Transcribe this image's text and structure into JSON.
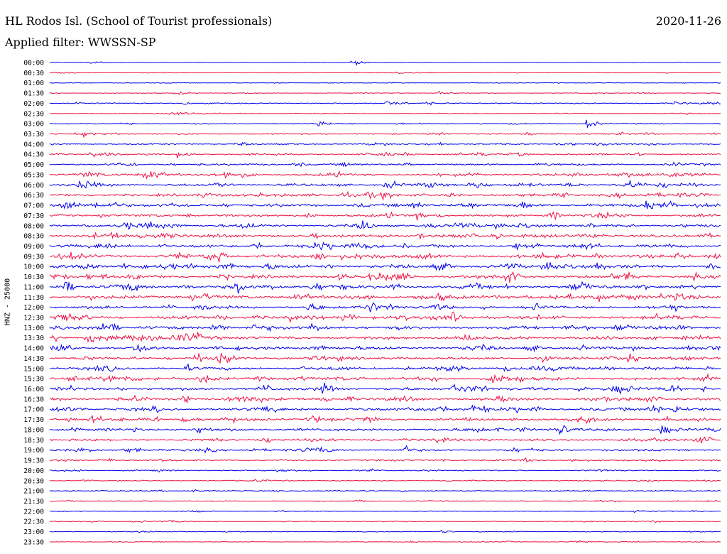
{
  "header": {
    "station": "HL Rodos Isl. (School of Tourist professionals)",
    "date": "2020-11-26",
    "filter": "Applied filter: WWSSN-SP"
  },
  "chart_data": {
    "type": "line",
    "title": "HL Rodos Isl. (School of Tourist professionals)",
    "ylabel": "HNZ - 25000",
    "xlabel": "",
    "grid": false,
    "legend": "none",
    "series_colors": [
      "#0000ee",
      "#ee1144"
    ],
    "rows": [
      {
        "time": "00:00",
        "activity": 0.15
      },
      {
        "time": "00:30",
        "activity": 0.15
      },
      {
        "time": "01:00",
        "activity": 0.12
      },
      {
        "time": "01:30",
        "activity": 0.18
      },
      {
        "time": "02:00",
        "activity": 0.3
      },
      {
        "time": "02:30",
        "activity": 0.18
      },
      {
        "time": "03:00",
        "activity": 0.3
      },
      {
        "time": "03:30",
        "activity": 0.35
      },
      {
        "time": "04:00",
        "activity": 0.4
      },
      {
        "time": "04:30",
        "activity": 0.5
      },
      {
        "time": "05:00",
        "activity": 0.55
      },
      {
        "time": "05:30",
        "activity": 0.75
      },
      {
        "time": "06:00",
        "activity": 0.8
      },
      {
        "time": "06:30",
        "activity": 0.8
      },
      {
        "time": "07:00",
        "activity": 0.9
      },
      {
        "time": "07:30",
        "activity": 0.8
      },
      {
        "time": "08:00",
        "activity": 0.85
      },
      {
        "time": "08:30",
        "activity": 0.9
      },
      {
        "time": "09:00",
        "activity": 0.95
      },
      {
        "time": "09:30",
        "activity": 1.0
      },
      {
        "time": "10:00",
        "activity": 1.0
      },
      {
        "time": "10:30",
        "activity": 1.0
      },
      {
        "time": "11:00",
        "activity": 1.0
      },
      {
        "time": "11:30",
        "activity": 1.0
      },
      {
        "time": "12:00",
        "activity": 0.9
      },
      {
        "time": "12:30",
        "activity": 1.0
      },
      {
        "time": "13:00",
        "activity": 0.95
      },
      {
        "time": "13:30",
        "activity": 0.95
      },
      {
        "time": "14:00",
        "activity": 0.9
      },
      {
        "time": "14:30",
        "activity": 0.85
      },
      {
        "time": "15:00",
        "activity": 0.9
      },
      {
        "time": "15:30",
        "activity": 0.95
      },
      {
        "time": "16:00",
        "activity": 0.9
      },
      {
        "time": "16:30",
        "activity": 0.85
      },
      {
        "time": "17:00",
        "activity": 0.9
      },
      {
        "time": "17:30",
        "activity": 0.9
      },
      {
        "time": "18:00",
        "activity": 0.85
      },
      {
        "time": "18:30",
        "activity": 0.7
      },
      {
        "time": "19:00",
        "activity": 0.6
      },
      {
        "time": "19:30",
        "activity": 0.5
      },
      {
        "time": "20:00",
        "activity": 0.35
      },
      {
        "time": "20:30",
        "activity": 0.3
      },
      {
        "time": "21:00",
        "activity": 0.3
      },
      {
        "time": "21:30",
        "activity": 0.25
      },
      {
        "time": "22:00",
        "activity": 0.2
      },
      {
        "time": "22:30",
        "activity": 0.25
      },
      {
        "time": "23:00",
        "activity": 0.2
      },
      {
        "time": "23:30",
        "activity": 0.18
      }
    ],
    "events": [
      {
        "time": "00:00",
        "at": 0.45,
        "amp": 5
      },
      {
        "time": "01:30",
        "at": 0.58,
        "amp": 6
      },
      {
        "time": "02:00",
        "at": 0.5,
        "amp": 11
      },
      {
        "time": "02:00",
        "at": 0.2,
        "amp": 5
      },
      {
        "time": "02:00",
        "at": 0.93,
        "amp": 5
      },
      {
        "time": "02:30",
        "at": 0.18,
        "amp": 6
      },
      {
        "time": "03:00",
        "at": 0.8,
        "amp": 11
      },
      {
        "time": "03:00",
        "at": 0.4,
        "amp": 6
      },
      {
        "time": "03:30",
        "at": 0.08,
        "amp": 6
      },
      {
        "time": "04:30",
        "at": 0.06,
        "amp": 8
      },
      {
        "time": "04:30",
        "at": 0.19,
        "amp": 8
      },
      {
        "time": "05:30",
        "at": 0.16,
        "amp": 8
      },
      {
        "time": "05:30",
        "at": 0.26,
        "amp": 10
      },
      {
        "time": "06:00",
        "at": 0.05,
        "amp": 12
      },
      {
        "time": "06:00",
        "at": 0.5,
        "amp": 14
      },
      {
        "time": "06:30",
        "at": 0.23,
        "amp": 8
      },
      {
        "time": "07:00",
        "at": 0.02,
        "amp": 14
      },
      {
        "time": "07:30",
        "at": 0.5,
        "amp": 7
      },
      {
        "time": "08:00",
        "at": 0.11,
        "amp": 11
      },
      {
        "time": "09:30",
        "at": 0.03,
        "amp": 8
      },
      {
        "time": "09:30",
        "at": 0.73,
        "amp": 10
      },
      {
        "time": "10:00",
        "at": 0.74,
        "amp": 10
      },
      {
        "time": "10:00",
        "at": 0.98,
        "amp": 10
      },
      {
        "time": "10:30",
        "at": 0.49,
        "amp": 12
      },
      {
        "time": "11:00",
        "at": 0.02,
        "amp": 11
      },
      {
        "time": "11:30",
        "at": 0.23,
        "amp": 8
      },
      {
        "time": "12:30",
        "at": 0.6,
        "amp": 13
      },
      {
        "time": "13:00",
        "at": 0.39,
        "amp": 9
      },
      {
        "time": "14:30",
        "at": 0.25,
        "amp": 10
      },
      {
        "time": "15:30",
        "at": 0.09,
        "amp": 8
      },
      {
        "time": "16:00",
        "at": 0.6,
        "amp": 12
      },
      {
        "time": "16:30",
        "at": 0.26,
        "amp": 7
      },
      {
        "time": "17:00",
        "at": 0.32,
        "amp": 8
      },
      {
        "time": "17:00",
        "at": 0.93,
        "amp": 10
      },
      {
        "time": "17:30",
        "at": 0.06,
        "amp": 11
      },
      {
        "time": "18:00",
        "at": 0.91,
        "amp": 12
      },
      {
        "time": "19:00",
        "at": 0.4,
        "amp": 12
      },
      {
        "time": "20:00",
        "at": 0.34,
        "amp": 5
      },
      {
        "time": "22:00",
        "at": 0.87,
        "amp": 4
      }
    ]
  }
}
